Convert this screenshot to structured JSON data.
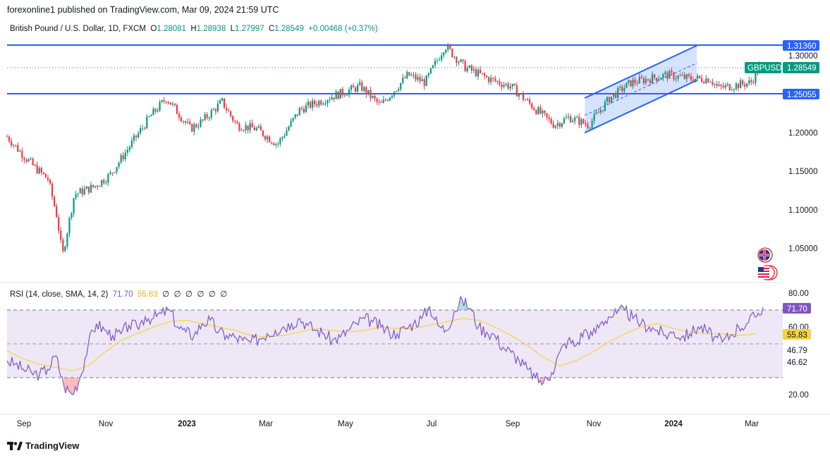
{
  "header": {
    "publisher": "forexonline1 published on TradingView.com, Mar 09, 2024 21:59 UTC"
  },
  "legend": {
    "symbol": "British Pound / U.S. Dollar, 1D, FXCM",
    "open_label": "O",
    "open": "1.28081",
    "high_label": "H",
    "high": "1.28938",
    "low_label": "L",
    "low": "1.27997",
    "close_label": "C",
    "close": "1.28549",
    "change": "+0.00468 (+0.37%)"
  },
  "rsi_legend": {
    "title": "RSI (14, close, SMA, 14, 2)",
    "rsi_value": "71.70",
    "sma_value": "55.83",
    "empty_values": [
      "∅",
      "∅",
      "∅",
      "∅",
      "∅",
      "∅"
    ]
  },
  "price_tags": {
    "resistance": "1.31360",
    "support": "1.25055",
    "symbol_tag": "GBPUSD",
    "last_price": "1.28549"
  },
  "rsi_tags": {
    "rsi": "71.70",
    "sma": "55.83",
    "level_a": "46.79",
    "level_b": "46.62"
  },
  "footer": {
    "brand": "TradingView"
  },
  "colors": {
    "up": "#089981",
    "down": "#f23645",
    "level_line": "#2962ff",
    "channel_fill": "#bbd0fb",
    "rsi_line": "#7e57c2",
    "rsi_sma": "#f7d342",
    "rsi_band": "#ede7f6"
  },
  "chart_data": [
    {
      "type": "candlestick",
      "symbol": "GBPUSD",
      "timeframe": "1D",
      "price_axis_ticks": [
        1.3,
        1.25,
        1.2,
        1.15,
        1.1,
        1.05
      ],
      "price_axis_labels": [
        "1.30000",
        "1.20000",
        "1.15000",
        "1.10000",
        "1.05000"
      ],
      "ylim": [
        1.02,
        1.33
      ],
      "x_axis_labels": [
        "Sep",
        "Nov",
        "2023",
        "Mar",
        "May",
        "Jul",
        "Sep",
        "Nov",
        "2024",
        "Mar"
      ],
      "horizontal_levels": [
        1.3136,
        1.25055
      ],
      "last_price": 1.28549,
      "ohlc_path": [
        [
          "2022-08-15",
          1.195
        ],
        [
          "2022-08-25",
          1.175
        ],
        [
          "2022-09-05",
          1.155
        ],
        [
          "2022-09-15",
          1.14
        ],
        [
          "2022-09-22",
          1.09
        ],
        [
          "2022-09-26",
          1.04
        ],
        [
          "2022-10-05",
          1.12
        ],
        [
          "2022-10-20",
          1.13
        ],
        [
          "2022-11-01",
          1.145
        ],
        [
          "2022-11-15",
          1.18
        ],
        [
          "2022-12-01",
          1.22
        ],
        [
          "2022-12-14",
          1.245
        ],
        [
          "2023-01-01",
          1.205
        ],
        [
          "2023-01-10",
          1.215
        ],
        [
          "2023-01-25",
          1.24
        ],
        [
          "2023-02-05",
          1.21
        ],
        [
          "2023-02-20",
          1.205
        ],
        [
          "2023-03-08",
          1.185
        ],
        [
          "2023-03-25",
          1.23
        ],
        [
          "2023-04-15",
          1.245
        ],
        [
          "2023-05-10",
          1.26
        ],
        [
          "2023-05-25",
          1.235
        ],
        [
          "2023-06-15",
          1.275
        ],
        [
          "2023-06-28",
          1.265
        ],
        [
          "2023-07-13",
          1.313
        ],
        [
          "2023-07-28",
          1.285
        ],
        [
          "2023-08-15",
          1.27
        ],
        [
          "2023-09-01",
          1.26
        ],
        [
          "2023-09-20",
          1.23
        ],
        [
          "2023-10-04",
          1.21
        ],
        [
          "2023-10-15",
          1.22
        ],
        [
          "2023-10-30",
          1.21
        ],
        [
          "2023-11-15",
          1.245
        ],
        [
          "2023-12-01",
          1.265
        ],
        [
          "2023-12-15",
          1.27
        ],
        [
          "2023-12-28",
          1.275
        ],
        [
          "2024-01-15",
          1.27
        ],
        [
          "2024-01-30",
          1.27
        ],
        [
          "2024-02-05",
          1.258
        ],
        [
          "2024-02-20",
          1.262
        ],
        [
          "2024-03-01",
          1.265
        ],
        [
          "2024-03-08",
          1.2855
        ]
      ],
      "channel": {
        "lower": [
          [
            "2023-10-27",
            1.2
          ],
          [
            "2024-01-20",
            1.268
          ]
        ],
        "upper": [
          [
            "2023-10-27",
            1.245
          ],
          [
            "2024-01-20",
            1.313
          ]
        ]
      }
    },
    {
      "type": "line",
      "name": "RSI (14, close, SMA, 14, 2)",
      "ylim": [
        15,
        85
      ],
      "axis_labels": [
        "80.00",
        "60.00",
        "20.00"
      ],
      "band_levels": [
        70,
        30
      ],
      "middle_level": 50,
      "series": [
        {
          "name": "RSI",
          "values": [
            [
              1,
              40
            ],
            [
              2,
              38
            ],
            [
              3,
              35
            ],
            [
              4,
              33
            ],
            [
              5,
              32
            ],
            [
              6,
              35
            ],
            [
              7,
              43
            ],
            [
              8,
              25
            ],
            [
              9,
              20
            ],
            [
              10,
              30
            ],
            [
              11,
              50
            ],
            [
              12,
              62
            ],
            [
              13,
              58
            ],
            [
              14,
              55
            ],
            [
              15,
              56
            ],
            [
              16,
              61
            ],
            [
              17,
              60
            ],
            [
              18,
              66
            ],
            [
              19,
              65
            ],
            [
              20,
              68
            ],
            [
              21,
              70
            ],
            [
              22,
              60
            ],
            [
              23,
              57
            ],
            [
              24,
              55
            ],
            [
              25,
              62
            ],
            [
              26,
              64
            ],
            [
              27,
              57
            ],
            [
              28,
              55
            ],
            [
              29,
              54
            ],
            [
              30,
              52
            ],
            [
              31,
              51
            ],
            [
              32,
              53
            ],
            [
              33,
              56
            ],
            [
              34,
              58
            ],
            [
              35,
              60
            ],
            [
              36,
              62
            ],
            [
              37,
              65
            ],
            [
              38,
              61
            ],
            [
              39,
              58
            ],
            [
              40,
              56
            ],
            [
              41,
              52
            ],
            [
              42,
              54
            ],
            [
              43,
              58
            ],
            [
              44,
              62
            ],
            [
              45,
              65
            ],
            [
              46,
              63
            ],
            [
              47,
              60
            ],
            [
              48,
              57
            ],
            [
              49,
              56
            ],
            [
              50,
              59
            ],
            [
              51,
              62
            ],
            [
              52,
              65
            ],
            [
              53,
              72
            ],
            [
              54,
              61
            ],
            [
              55,
              58
            ],
            [
              56,
              69
            ],
            [
              57,
              76
            ],
            [
              58,
              71
            ],
            [
              59,
              60
            ],
            [
              60,
              57
            ],
            [
              61,
              55
            ],
            [
              62,
              48
            ],
            [
              63,
              45
            ],
            [
              64,
              40
            ],
            [
              65,
              35
            ],
            [
              66,
              30
            ],
            [
              67,
              27
            ],
            [
              68,
              33
            ],
            [
              69,
              45
            ],
            [
              70,
              52
            ],
            [
              71,
              49
            ],
            [
              72,
              58
            ],
            [
              73,
              55
            ],
            [
              74,
              62
            ],
            [
              75,
              66
            ],
            [
              76,
              68
            ],
            [
              77,
              70
            ],
            [
              78,
              65
            ],
            [
              79,
              62
            ],
            [
              80,
              60
            ],
            [
              81,
              58
            ],
            [
              82,
              55
            ],
            [
              83,
              57
            ],
            [
              84,
              54
            ],
            [
              85,
              56
            ],
            [
              86,
              60
            ],
            [
              87,
              58
            ],
            [
              88,
              54
            ],
            [
              89,
              51
            ],
            [
              90,
              55
            ],
            [
              91,
              60
            ],
            [
              92,
              62
            ],
            [
              93,
              66
            ],
            [
              94,
              71.7
            ]
          ]
        },
        {
          "name": "SMA",
          "values": [
            [
              1,
              46
            ],
            [
              3,
              41
            ],
            [
              5,
              38
            ],
            [
              7,
              36
            ],
            [
              9,
              34
            ],
            [
              11,
              37
            ],
            [
              13,
              45
            ],
            [
              15,
              52
            ],
            [
              17,
              56
            ],
            [
              19,
              60
            ],
            [
              21,
              63
            ],
            [
              23,
              64
            ],
            [
              25,
              62
            ],
            [
              27,
              60
            ],
            [
              29,
              58
            ],
            [
              31,
              55
            ],
            [
              33,
              54
            ],
            [
              35,
              55
            ],
            [
              37,
              57
            ],
            [
              39,
              59
            ],
            [
              41,
              58
            ],
            [
              43,
              57
            ],
            [
              45,
              58
            ],
            [
              47,
              60
            ],
            [
              49,
              59
            ],
            [
              51,
              59
            ],
            [
              53,
              61
            ],
            [
              55,
              63
            ],
            [
              57,
              65
            ],
            [
              59,
              64
            ],
            [
              61,
              60
            ],
            [
              63,
              55
            ],
            [
              65,
              49
            ],
            [
              67,
              42
            ],
            [
              69,
              37
            ],
            [
              71,
              40
            ],
            [
              73,
              45
            ],
            [
              75,
              51
            ],
            [
              77,
              56
            ],
            [
              79,
              60
            ],
            [
              81,
              62
            ],
            [
              83,
              59
            ],
            [
              85,
              57
            ],
            [
              87,
              56
            ],
            [
              89,
              56
            ],
            [
              91,
              55
            ],
            [
              93,
              55.83
            ]
          ]
        }
      ]
    }
  ]
}
